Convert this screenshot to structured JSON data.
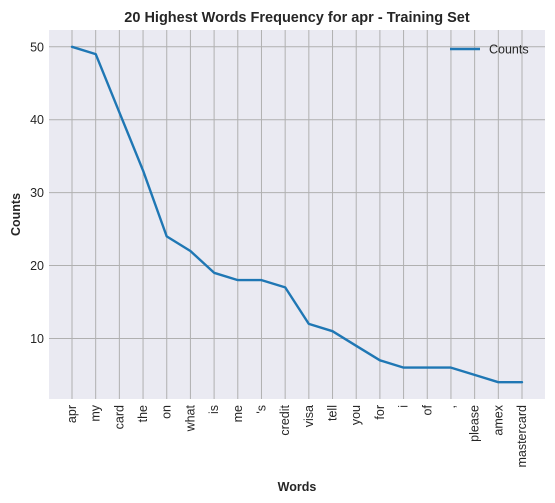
{
  "chart_data": {
    "type": "line",
    "title": "20 Highest Words Frequency for apr - Training Set",
    "xlabel": "Words",
    "ylabel": "Counts",
    "categories": [
      "apr",
      "my",
      "card",
      "the",
      "on",
      "what",
      "is",
      "me",
      "'s",
      "credit",
      "visa",
      "tell",
      "you",
      "for",
      "i",
      "of",
      ",",
      "please",
      "amex",
      "mastercard"
    ],
    "series": [
      {
        "name": "Counts",
        "values": [
          50,
          49,
          41,
          33,
          24,
          22,
          19,
          18,
          18,
          17,
          12,
          11,
          9,
          7,
          6,
          6,
          6,
          5,
          4,
          4
        ],
        "color": "#1f77b4"
      }
    ],
    "yticks": [
      10,
      20,
      30,
      40,
      50
    ],
    "ylim": [
      1.7,
      52.3
    ],
    "grid": true,
    "legend_position": "top-right",
    "background": "#eaeaf2",
    "grid_color": "#b0b0b0"
  }
}
